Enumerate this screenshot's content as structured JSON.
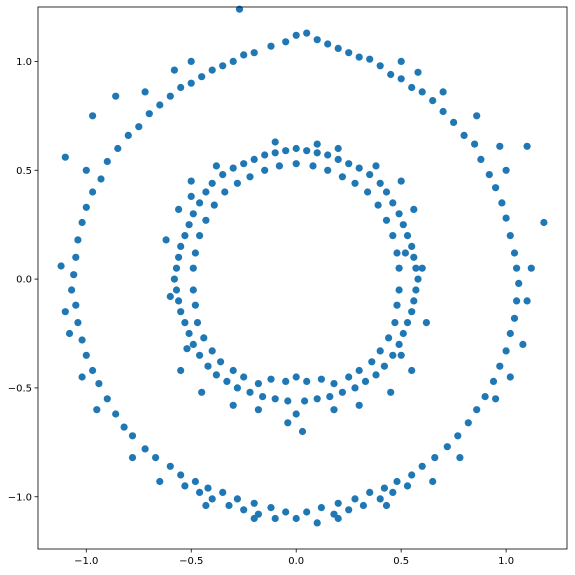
{
  "chart_data": {
    "type": "scatter",
    "title": "",
    "xlabel": "",
    "ylabel": "",
    "xlim": [
      -1.23,
      1.29
    ],
    "ylim": [
      -1.24,
      1.25
    ],
    "xticks": [
      -1.0,
      -0.5,
      0.0,
      0.5,
      1.0
    ],
    "xtick_labels": [
      "−1.0",
      "−0.5",
      "0.0",
      "0.5",
      "1.0"
    ],
    "yticks": [
      -1.0,
      -0.5,
      0.0,
      0.5,
      1.0
    ],
    "ytick_labels": [
      "−1.0",
      "−0.5",
      "0.0",
      "0.5",
      "1.0"
    ],
    "grid": false,
    "legend": "none",
    "marker_color": "#1f77b4",
    "series": [
      {
        "points": [
          [
            -0.27,
            1.24
          ],
          [
            0.05,
            1.13
          ],
          [
            0.1,
            1.1
          ],
          [
            0.0,
            1.12
          ],
          [
            -0.05,
            1.09
          ],
          [
            0.15,
            1.08
          ],
          [
            -0.12,
            1.07
          ],
          [
            0.2,
            1.06
          ],
          [
            0.25,
            1.04
          ],
          [
            -0.2,
            1.04
          ],
          [
            0.3,
            1.02
          ],
          [
            -0.25,
            1.03
          ],
          [
            0.35,
            1.01
          ],
          [
            -0.3,
            1.0
          ],
          [
            0.4,
            0.98
          ],
          [
            -0.35,
            0.98
          ],
          [
            -0.4,
            0.96
          ],
          [
            0.45,
            0.94
          ],
          [
            -0.45,
            0.93
          ],
          [
            -0.5,
            0.9
          ],
          [
            0.5,
            0.92
          ],
          [
            0.55,
            0.88
          ],
          [
            -0.55,
            0.88
          ],
          [
            0.6,
            0.86
          ],
          [
            -0.6,
            0.84
          ],
          [
            0.65,
            0.82
          ],
          [
            -0.65,
            0.8
          ],
          [
            0.7,
            0.77
          ],
          [
            -0.7,
            0.76
          ],
          [
            0.75,
            0.72
          ],
          [
            -0.75,
            0.7
          ],
          [
            0.8,
            0.66
          ],
          [
            -0.8,
            0.66
          ],
          [
            0.85,
            0.62
          ],
          [
            -0.85,
            0.6
          ],
          [
            0.88,
            0.55
          ],
          [
            -0.9,
            0.54
          ],
          [
            0.92,
            0.48
          ],
          [
            -0.93,
            0.46
          ],
          [
            0.95,
            0.42
          ],
          [
            -0.97,
            0.4
          ],
          [
            0.98,
            0.35
          ],
          [
            -1.0,
            0.33
          ],
          [
            1.0,
            0.28
          ],
          [
            -1.02,
            0.26
          ],
          [
            1.02,
            0.2
          ],
          [
            -1.04,
            0.18
          ],
          [
            1.04,
            0.12
          ],
          [
            -1.05,
            0.1
          ],
          [
            1.05,
            0.05
          ],
          [
            -1.06,
            0.02
          ],
          [
            1.06,
            -0.02
          ],
          [
            -1.07,
            -0.05
          ],
          [
            1.05,
            -0.1
          ],
          [
            -1.05,
            -0.12
          ],
          [
            1.04,
            -0.18
          ],
          [
            -1.04,
            -0.2
          ],
          [
            1.02,
            -0.25
          ],
          [
            -1.02,
            -0.28
          ],
          [
            1.0,
            -0.33
          ],
          [
            -1.0,
            -0.35
          ],
          [
            0.97,
            -0.4
          ],
          [
            -0.97,
            -0.42
          ],
          [
            0.94,
            -0.47
          ],
          [
            -0.94,
            -0.48
          ],
          [
            0.9,
            -0.54
          ],
          [
            -0.9,
            -0.55
          ],
          [
            0.86,
            -0.6
          ],
          [
            -0.86,
            -0.62
          ],
          [
            0.82,
            -0.66
          ],
          [
            -0.82,
            -0.68
          ],
          [
            0.77,
            -0.72
          ],
          [
            -0.78,
            -0.72
          ],
          [
            0.72,
            -0.77
          ],
          [
            -0.72,
            -0.78
          ],
          [
            0.66,
            -0.82
          ],
          [
            -0.67,
            -0.82
          ],
          [
            0.6,
            -0.86
          ],
          [
            -0.6,
            -0.86
          ],
          [
            0.55,
            -0.9
          ],
          [
            -0.55,
            -0.9
          ],
          [
            0.48,
            -0.93
          ],
          [
            -0.48,
            -0.93
          ],
          [
            0.42,
            -0.96
          ],
          [
            -0.42,
            -0.96
          ],
          [
            0.35,
            -0.98
          ],
          [
            -0.35,
            -0.98
          ],
          [
            0.28,
            -1.01
          ],
          [
            -0.28,
            -1.01
          ],
          [
            0.2,
            -1.03
          ],
          [
            -0.2,
            -1.03
          ],
          [
            0.12,
            -1.05
          ],
          [
            -0.12,
            -1.05
          ],
          [
            0.05,
            -1.07
          ],
          [
            -0.05,
            -1.07
          ],
          [
            0.0,
            -1.1
          ],
          [
            0.1,
            -1.12
          ],
          [
            -0.1,
            -1.1
          ],
          [
            0.18,
            -1.08
          ],
          [
            -0.18,
            -1.08
          ],
          [
            0.25,
            -1.06
          ],
          [
            -0.25,
            -1.06
          ],
          [
            0.32,
            -1.04
          ],
          [
            -0.32,
            -1.04
          ],
          [
            0.4,
            -1.01
          ],
          [
            -0.4,
            -1.01
          ],
          [
            0.46,
            -0.98
          ],
          [
            -0.46,
            -0.98
          ],
          [
            0.53,
            -0.95
          ],
          [
            -0.53,
            -0.95
          ],
          [
            1.18,
            0.26
          ],
          [
            1.1,
            0.61
          ],
          [
            -1.1,
            0.56
          ],
          [
            -1.12,
            0.06
          ],
          [
            0.97,
            0.61
          ],
          [
            -0.97,
            0.75
          ],
          [
            0.86,
            0.75
          ],
          [
            -0.86,
            0.84
          ],
          [
            0.7,
            0.86
          ],
          [
            -0.72,
            0.86
          ],
          [
            0.5,
            1.0
          ],
          [
            -0.5,
            1.0
          ],
          [
            0.58,
            0.95
          ],
          [
            -0.58,
            0.96
          ],
          [
            1.12,
            0.05
          ],
          [
            1.1,
            -0.1
          ],
          [
            -1.1,
            -0.15
          ],
          [
            -1.08,
            -0.25
          ],
          [
            1.08,
            -0.3
          ],
          [
            0.95,
            -0.55
          ],
          [
            -0.95,
            -0.6
          ],
          [
            0.78,
            -0.82
          ],
          [
            -0.78,
            -0.82
          ],
          [
            0.65,
            -0.93
          ],
          [
            -0.65,
            -0.93
          ],
          [
            0.43,
            -1.04
          ],
          [
            -0.43,
            -1.04
          ],
          [
            0.2,
            -1.1
          ],
          [
            -0.2,
            -1.1
          ],
          [
            1.0,
            0.5
          ],
          [
            -1.0,
            0.5
          ],
          [
            1.02,
            -0.45
          ],
          [
            -1.02,
            -0.45
          ],
          [
            0.0,
            0.6
          ],
          [
            0.05,
            0.59
          ],
          [
            -0.05,
            0.59
          ],
          [
            0.1,
            0.58
          ],
          [
            -0.1,
            0.58
          ],
          [
            0.15,
            0.57
          ],
          [
            -0.15,
            0.57
          ],
          [
            0.2,
            0.55
          ],
          [
            -0.2,
            0.55
          ],
          [
            0.25,
            0.53
          ],
          [
            -0.25,
            0.53
          ],
          [
            0.3,
            0.51
          ],
          [
            -0.3,
            0.51
          ],
          [
            0.35,
            0.48
          ],
          [
            -0.35,
            0.48
          ],
          [
            0.4,
            0.44
          ],
          [
            -0.4,
            0.44
          ],
          [
            0.43,
            0.4
          ],
          [
            -0.43,
            0.4
          ],
          [
            0.46,
            0.35
          ],
          [
            -0.46,
            0.35
          ],
          [
            0.49,
            0.3
          ],
          [
            -0.49,
            0.3
          ],
          [
            0.51,
            0.25
          ],
          [
            -0.51,
            0.25
          ],
          [
            0.53,
            0.2
          ],
          [
            -0.53,
            0.2
          ],
          [
            0.55,
            0.15
          ],
          [
            -0.55,
            0.15
          ],
          [
            0.56,
            0.1
          ],
          [
            -0.56,
            0.1
          ],
          [
            0.57,
            0.05
          ],
          [
            -0.57,
            0.05
          ],
          [
            0.58,
            0.0
          ],
          [
            -0.58,
            0.0
          ],
          [
            0.57,
            -0.05
          ],
          [
            -0.57,
            -0.05
          ],
          [
            0.56,
            -0.1
          ],
          [
            -0.56,
            -0.1
          ],
          [
            0.55,
            -0.15
          ],
          [
            -0.55,
            -0.15
          ],
          [
            0.53,
            -0.2
          ],
          [
            -0.53,
            -0.2
          ],
          [
            0.51,
            -0.25
          ],
          [
            -0.51,
            -0.25
          ],
          [
            0.49,
            -0.3
          ],
          [
            -0.49,
            -0.3
          ],
          [
            0.46,
            -0.35
          ],
          [
            -0.46,
            -0.35
          ],
          [
            0.42,
            -0.4
          ],
          [
            -0.42,
            -0.4
          ],
          [
            0.38,
            -0.44
          ],
          [
            -0.38,
            -0.44
          ],
          [
            0.33,
            -0.47
          ],
          [
            -0.33,
            -0.47
          ],
          [
            0.28,
            -0.5
          ],
          [
            -0.28,
            -0.5
          ],
          [
            0.22,
            -0.52
          ],
          [
            -0.22,
            -0.52
          ],
          [
            0.16,
            -0.54
          ],
          [
            -0.16,
            -0.54
          ],
          [
            0.1,
            -0.55
          ],
          [
            -0.1,
            -0.55
          ],
          [
            0.04,
            -0.56
          ],
          [
            -0.04,
            -0.56
          ],
          [
            0.0,
            -0.45
          ],
          [
            0.05,
            -0.47
          ],
          [
            -0.05,
            -0.47
          ],
          [
            0.12,
            -0.46
          ],
          [
            -0.12,
            -0.46
          ],
          [
            0.18,
            -0.48
          ],
          [
            -0.18,
            -0.48
          ],
          [
            0.25,
            -0.45
          ],
          [
            -0.25,
            -0.45
          ],
          [
            0.3,
            -0.42
          ],
          [
            -0.3,
            -0.42
          ],
          [
            0.36,
            -0.38
          ],
          [
            -0.36,
            -0.38
          ],
          [
            0.4,
            -0.33
          ],
          [
            -0.4,
            -0.33
          ],
          [
            0.44,
            -0.27
          ],
          [
            -0.44,
            -0.27
          ],
          [
            0.47,
            -0.2
          ],
          [
            -0.47,
            -0.2
          ],
          [
            0.48,
            -0.12
          ],
          [
            -0.48,
            -0.12
          ],
          [
            0.49,
            -0.05
          ],
          [
            -0.49,
            -0.05
          ],
          [
            0.49,
            0.05
          ],
          [
            -0.49,
            0.05
          ],
          [
            0.48,
            0.12
          ],
          [
            -0.48,
            0.12
          ],
          [
            0.46,
            0.2
          ],
          [
            -0.46,
            0.2
          ],
          [
            0.43,
            0.27
          ],
          [
            -0.43,
            0.27
          ],
          [
            0.39,
            0.34
          ],
          [
            -0.39,
            0.34
          ],
          [
            0.34,
            0.4
          ],
          [
            -0.34,
            0.4
          ],
          [
            0.28,
            0.44
          ],
          [
            -0.28,
            0.44
          ],
          [
            0.22,
            0.47
          ],
          [
            -0.22,
            0.47
          ],
          [
            0.15,
            0.5
          ],
          [
            -0.15,
            0.5
          ],
          [
            0.08,
            0.52
          ],
          [
            -0.08,
            0.52
          ],
          [
            0.0,
            0.53
          ],
          [
            0.52,
            0.12
          ],
          [
            0.5,
            -0.35
          ],
          [
            -0.52,
            -0.32
          ],
          [
            -0.5,
            0.38
          ],
          [
            0.3,
            -0.58
          ],
          [
            -0.3,
            -0.58
          ],
          [
            0.0,
            -0.62
          ],
          [
            0.03,
            -0.7
          ],
          [
            -0.04,
            -0.66
          ],
          [
            0.18,
            -0.6
          ],
          [
            -0.18,
            -0.6
          ],
          [
            0.1,
            0.62
          ],
          [
            -0.1,
            0.63
          ],
          [
            0.2,
            0.6
          ],
          [
            0.38,
            0.52
          ],
          [
            -0.38,
            0.52
          ],
          [
            0.5,
            0.45
          ],
          [
            -0.5,
            0.45
          ],
          [
            0.56,
            0.32
          ],
          [
            -0.56,
            0.32
          ],
          [
            0.6,
            0.05
          ],
          [
            -0.6,
            -0.08
          ],
          [
            0.55,
            -0.42
          ],
          [
            -0.55,
            -0.42
          ],
          [
            0.45,
            -0.52
          ],
          [
            -0.45,
            -0.52
          ],
          [
            0.62,
            -0.2
          ],
          [
            -0.62,
            0.18
          ]
        ]
      }
    ]
  }
}
